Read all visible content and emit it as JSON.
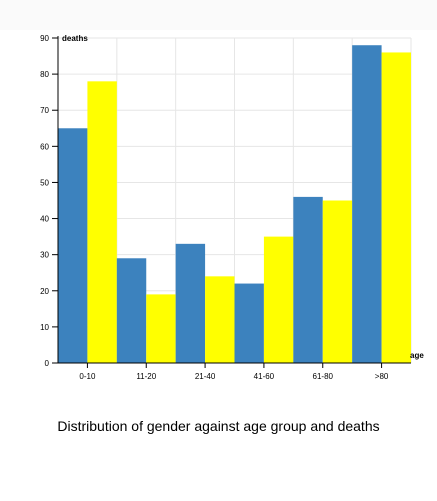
{
  "chart_data": {
    "type": "bar",
    "title": "Distribution of gender against age group and deaths",
    "xlabel": "age",
    "ylabel": "deaths",
    "categories": [
      "0-10",
      "11-20",
      "21-40",
      "41-60",
      "61-80",
      ">80"
    ],
    "series": [
      {
        "values": [
          65,
          29,
          33,
          22,
          46,
          88
        ],
        "color": "#3c82be"
      },
      {
        "values": [
          78,
          19,
          24,
          35,
          45,
          86
        ],
        "color": "#ffff00"
      }
    ],
    "ylim": [
      0,
      90
    ],
    "yticks": [
      0,
      10,
      20,
      30,
      40,
      50,
      60,
      70,
      80,
      90
    ],
    "grid": true,
    "legend": "none"
  }
}
